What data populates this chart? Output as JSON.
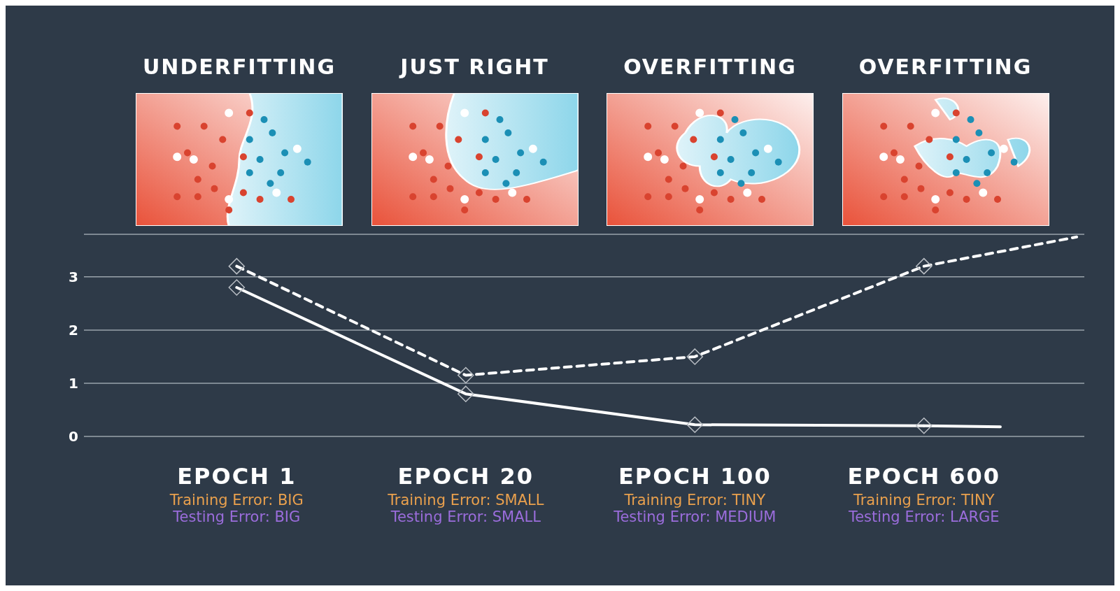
{
  "chart_data": {
    "type": "line",
    "annotations": [
      "UNDERFITTING",
      "JUST RIGHT",
      "OVERFITTING",
      "OVERFITTING"
    ],
    "categories": [
      null,
      null,
      "EPOCH 1\nTraining Error: BIG\nTesting Error: BIG",
      null,
      null,
      "EPOCH 20\nTraining Error: SMALL\nTesting Error: SMALL",
      null,
      null,
      "EPOCH 100\nTraining Error: TINY\nTesting Error: MEDIUM",
      null,
      null,
      "EPOCH 600\nTraining Error: TINY\nTesting Error: LARGE",
      null,
      null
    ],
    "ylim": [
      0,
      3.8
    ],
    "yticks": [
      0,
      1,
      2,
      3
    ],
    "grid": "y",
    "series": [
      {
        "color": "#ffffff",
        "values": [
          null,
          null,
          2.8,
          null,
          null,
          0.8,
          null,
          null,
          0.22,
          null,
          null,
          0.2,
          null,
          null
        ],
        "marker": "diamond",
        "line_style": "solid"
      },
      {
        "color": "#ffffff",
        "values": [
          null,
          null,
          null,
          null,
          null,
          null,
          null,
          null,
          null,
          null,
          null,
          0.2,
          0.18,
          null
        ],
        "marker": "none",
        "line_style": "solid"
      },
      {
        "color": "#ffffff",
        "values": [
          null,
          null,
          3.2,
          null,
          null,
          1.15,
          null,
          null,
          1.5,
          null,
          null,
          3.2,
          null,
          null
        ],
        "marker": "diamond",
        "line_style": "dashed"
      },
      {
        "color": "#ffffff",
        "values": [
          null,
          null,
          null,
          null,
          null,
          null,
          null,
          null,
          null,
          null,
          null,
          3.2,
          null,
          3.75
        ],
        "marker": "none",
        "line_style": "dashed"
      }
    ]
  }
}
